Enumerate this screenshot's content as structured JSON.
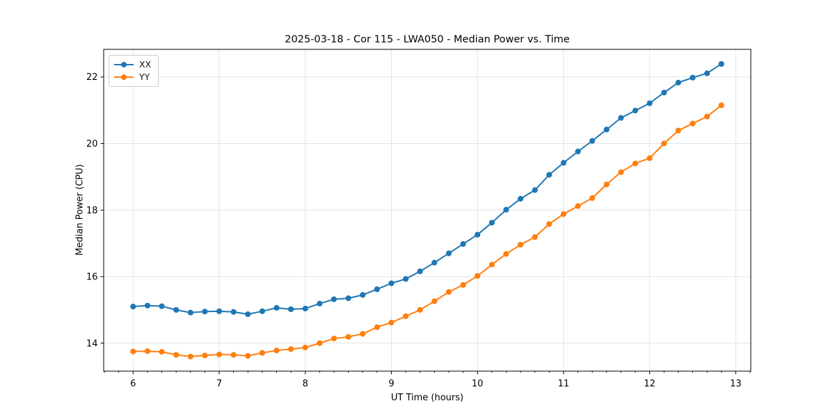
{
  "figure": {
    "background": "#ffffff"
  },
  "chart_data": {
    "type": "line",
    "title": "2025-03-18 - Cor 115 - LWA050 - Median Power vs. Time",
    "xlabel": "UT Time (hours)",
    "ylabel": "Median Power (CPU)",
    "xlim": [
      5.658,
      13.175
    ],
    "ylim": [
      13.16,
      22.83
    ],
    "xticks": [
      6,
      7,
      8,
      9,
      10,
      11,
      12,
      13
    ],
    "yticks": [
      14,
      16,
      18,
      20,
      22
    ],
    "x_minor_tick_step_hours": 0.1667,
    "grid": true,
    "grid_color": "#e4e4e4",
    "axis_color": "#000000",
    "legend": {
      "position": "upper left",
      "entries": [
        "XX",
        "YY"
      ]
    },
    "x": [
      6.0,
      6.167,
      6.333,
      6.5,
      6.667,
      6.833,
      7.0,
      7.167,
      7.333,
      7.5,
      7.667,
      7.833,
      8.0,
      8.167,
      8.333,
      8.5,
      8.667,
      8.833,
      9.0,
      9.167,
      9.333,
      9.5,
      9.667,
      9.833,
      10.0,
      10.167,
      10.333,
      10.5,
      10.667,
      10.833,
      11.0,
      11.167,
      11.333,
      11.5,
      11.667,
      11.833,
      12.0,
      12.167,
      12.333,
      12.5,
      12.667,
      12.833
    ],
    "series": [
      {
        "name": "XX",
        "color": "#1f77b4",
        "marker": "o",
        "values": [
          15.1,
          15.13,
          15.11,
          15.0,
          14.92,
          14.95,
          14.96,
          14.94,
          14.87,
          14.96,
          15.06,
          15.02,
          15.04,
          15.19,
          15.32,
          15.35,
          15.45,
          15.62,
          15.8,
          15.93,
          16.16,
          16.42,
          16.7,
          16.98,
          17.26,
          17.62,
          18.01,
          18.34,
          18.6,
          19.06,
          19.42,
          19.76,
          20.08,
          20.42,
          20.77,
          20.99,
          21.21,
          21.53,
          21.83,
          21.98,
          22.11,
          22.39
        ]
      },
      {
        "name": "YY",
        "color": "#ff7f0e",
        "marker": "o",
        "values": [
          13.75,
          13.76,
          13.74,
          13.65,
          13.6,
          13.63,
          13.66,
          13.65,
          13.62,
          13.71,
          13.78,
          13.82,
          13.87,
          14.0,
          14.14,
          14.19,
          14.28,
          14.48,
          14.62,
          14.81,
          15.0,
          15.26,
          15.54,
          15.75,
          16.02,
          16.36,
          16.68,
          16.96,
          17.19,
          17.58,
          17.88,
          18.12,
          18.36,
          18.77,
          19.14,
          19.4,
          19.56,
          20.0,
          20.39,
          20.6,
          20.81,
          21.15
        ]
      }
    ]
  }
}
